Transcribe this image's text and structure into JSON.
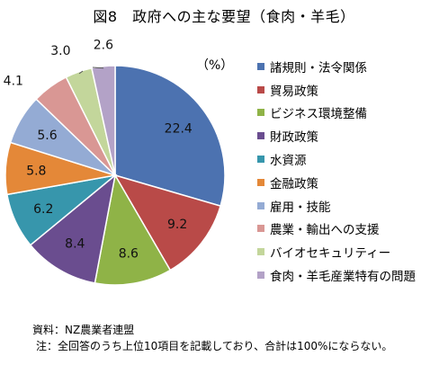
{
  "chart_data": {
    "type": "pie",
    "title": "図8　政府への主な要望（食肉・羊毛）",
    "unit": "（%）",
    "slices": [
      {
        "label": "諸規則・法令関係",
        "value": 22.4,
        "color": "#4c72b0"
      },
      {
        "label": "貿易政策",
        "value": 9.2,
        "color": "#b94a48"
      },
      {
        "label": "ビジネス環境整備",
        "value": 8.6,
        "color": "#8fb347"
      },
      {
        "label": "財政政策",
        "value": 8.4,
        "color": "#6a4d8f"
      },
      {
        "label": "水資源",
        "value": 6.2,
        "color": "#3796ac"
      },
      {
        "label": "金融政策",
        "value": 5.8,
        "color": "#e48838"
      },
      {
        "label": "雇用・技能",
        "value": 5.6,
        "color": "#94abd4"
      },
      {
        "label": "農業・輸出への支援",
        "value": 4.1,
        "color": "#d99794"
      },
      {
        "label": "バイオセキュリティー",
        "value": 3.0,
        "color": "#c3d69b"
      },
      {
        "label": "食肉・羊毛産業特有の問題",
        "value": 2.6,
        "color": "#b3a2c7"
      }
    ],
    "legend_position": "right"
  },
  "source": "資料：NZ農業者連盟",
  "note": "注：全回答のうち上位10項目を記載しており、合計は100%にならない。"
}
